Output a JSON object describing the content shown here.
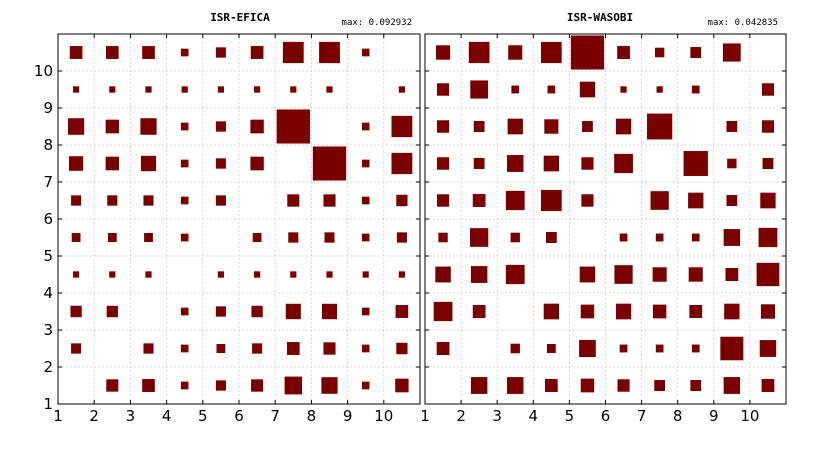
{
  "chart_data": [
    {
      "type": "heatmap",
      "title": "ISR-EFICA",
      "max_label": "max: 0.092932",
      "max_value": 0.092932,
      "xlim": [
        1,
        11
      ],
      "ylim": [
        1,
        11
      ],
      "xticks": [
        1,
        2,
        3,
        4,
        5,
        6,
        7,
        8,
        9,
        10
      ],
      "yticks": [
        1,
        2,
        3,
        4,
        5,
        6,
        7,
        8,
        9,
        10
      ],
      "grid": true,
      "mark": "square",
      "color": "#7a0000",
      "rows": [
        1,
        2,
        3,
        4,
        5,
        6,
        7,
        8,
        9,
        10
      ],
      "cols": [
        1,
        2,
        3,
        4,
        5,
        6,
        7,
        8,
        9,
        10
      ],
      "values": [
        [
          0,
          0.0122,
          0.0134,
          0.0048,
          0.0085,
          0.0122,
          0.0255,
          0.022,
          0.0048,
          0.015
        ],
        [
          0.0085,
          0,
          0.0085,
          0.0048,
          0.0065,
          0.0085,
          0.0134,
          0.0122,
          0.0048,
          0.0106
        ],
        [
          0.0106,
          0.0106,
          0,
          0.0048,
          0.0085,
          0.0106,
          0.019,
          0.019,
          0.0048,
          0.0134
        ],
        [
          0.0032,
          0.0032,
          0.0032,
          0,
          0.0032,
          0.0032,
          0.0032,
          0.0032,
          0.0032,
          0.0032
        ],
        [
          0.0065,
          0.0065,
          0.0065,
          0.0048,
          0,
          0.0065,
          0.0085,
          0.0085,
          0.0048,
          0.0085
        ],
        [
          0.0085,
          0.0085,
          0.0085,
          0.0048,
          0.0085,
          0,
          0.0122,
          0.0122,
          0.0048,
          0.0106
        ],
        [
          0.017,
          0.015,
          0.019,
          0.0048,
          0.0085,
          0.015,
          0,
          0.0929,
          0.0048,
          0.0363
        ],
        [
          0.022,
          0.015,
          0.022,
          0.0048,
          0.0085,
          0.015,
          0.0929,
          0,
          0.0048,
          0.0363
        ],
        [
          0.0032,
          0.0032,
          0.0032,
          0.0032,
          0.0032,
          0.0032,
          0.0032,
          0.0032,
          0,
          0.0032
        ],
        [
          0.0134,
          0.0134,
          0.0134,
          0.0048,
          0.0085,
          0.0134,
          0.0363,
          0.0363,
          0.0048,
          0
        ]
      ]
    },
    {
      "type": "heatmap",
      "title": "ISR-WASOBI",
      "max_label": "max: 0.042835",
      "max_value": 0.042835,
      "xlim": [
        1,
        11
      ],
      "ylim": [
        1,
        11
      ],
      "xticks": [
        1,
        2,
        3,
        4,
        5,
        6,
        7,
        8,
        9,
        10
      ],
      "yticks": [
        1,
        2,
        3,
        4,
        5,
        6,
        7,
        8,
        9,
        10
      ],
      "grid": true,
      "mark": "square",
      "color": "#7a0000",
      "rows": [
        1,
        2,
        3,
        4,
        5,
        6,
        7,
        8,
        9,
        10
      ],
      "cols": [
        1,
        2,
        3,
        4,
        5,
        6,
        7,
        8,
        9,
        10
      ],
      "values": [
        [
          0,
          0.0105,
          0.0105,
          0.0063,
          0.007,
          0.0057,
          0.0045,
          0.0045,
          0.0105,
          0.0063
        ],
        [
          0.0063,
          0,
          0.0034,
          0.003,
          0.0108,
          0.0023,
          0.0023,
          0.0023,
          0.0205,
          0.0105
        ],
        [
          0.0137,
          0.0063,
          0,
          0.0091,
          0.007,
          0.0091,
          0.007,
          0.0063,
          0.0091,
          0.0077
        ],
        [
          0.0093,
          0.0105,
          0.0137,
          0,
          0.0093,
          0.0129,
          0.0077,
          0.0077,
          0.0063,
          0.0201
        ],
        [
          0.0034,
          0.0129,
          0.0034,
          0.0045,
          0,
          0.0023,
          0.0023,
          0.0023,
          0.0105,
          0.0137
        ],
        [
          0.0057,
          0.0063,
          0.0137,
          0.0166,
          0.0057,
          0,
          0.0129,
          0.0091,
          0.0045,
          0.0091
        ],
        [
          0.0057,
          0.0045,
          0.0105,
          0.0091,
          0.0057,
          0.0137,
          0,
          0.023,
          0.0034,
          0.0045
        ],
        [
          0.0057,
          0.0045,
          0.0091,
          0.0077,
          0.0045,
          0.0091,
          0.0247,
          0,
          0.0045,
          0.0057
        ],
        [
          0.0057,
          0.0122,
          0.0023,
          0.0023,
          0.0091,
          0.0015,
          0.0015,
          0.0023,
          0,
          0.0057
        ],
        [
          0.0077,
          0.0166,
          0.0077,
          0.0166,
          0.0428,
          0.0063,
          0.0034,
          0.0045,
          0.0122,
          0
        ]
      ]
    }
  ]
}
